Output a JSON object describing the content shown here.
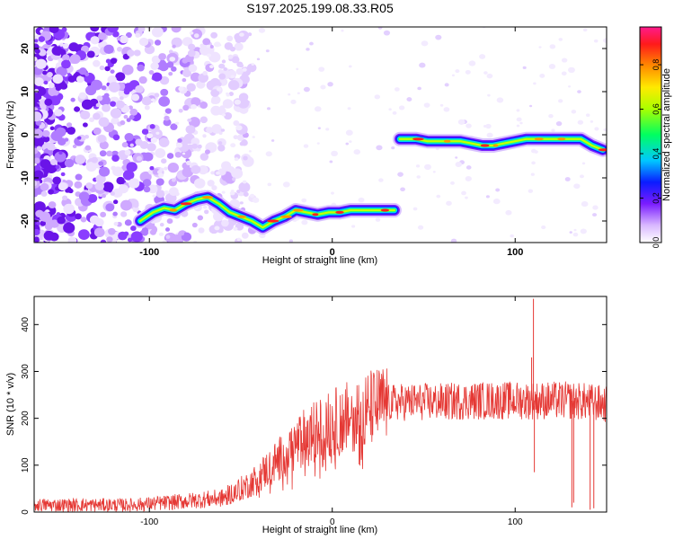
{
  "title": "S197.2025.199.08.33.R05",
  "chart_data": [
    {
      "type": "heatmap",
      "xlabel": "Height of straight line (km)",
      "ylabel": "Frequency (Hz)",
      "xlim": [
        -163,
        150
      ],
      "ylim": [
        -25,
        25
      ],
      "x_ticks": [
        "-100",
        "0",
        "100"
      ],
      "x_tick_values": [
        -100,
        0,
        100
      ],
      "y_ticks": [
        "-20",
        "-10",
        "0",
        "10",
        "20"
      ],
      "y_tick_values": [
        -20,
        -10,
        0,
        10,
        20
      ],
      "colorbar": {
        "label": "Normalized spectral amplitude",
        "range": [
          0,
          0.97
        ],
        "ticks": [
          "0.0",
          "0.2",
          "0.4",
          "0.6",
          "0.8"
        ],
        "tick_values": [
          0,
          0.2,
          0.4,
          0.6,
          0.8
        ]
      },
      "ridge": {
        "x": [
          -105,
          -98,
          -92,
          -86,
          -80,
          -74,
          -68,
          -62,
          -56,
          -50,
          -44,
          -38,
          -32,
          -26,
          -20,
          -14,
          -8,
          -2,
          4,
          10,
          16,
          22,
          28,
          34,
          37,
          40,
          46,
          52,
          58,
          64,
          70,
          76,
          82,
          88,
          94,
          100,
          106,
          112,
          118,
          124,
          130,
          136,
          142,
          148
        ],
        "y": [
          -20,
          -18,
          -17,
          -17.5,
          -16,
          -15,
          -14.5,
          -16,
          -18,
          -19,
          -20,
          -21.5,
          -20,
          -19,
          -17.5,
          -18,
          -18.5,
          -18,
          -18,
          -17.5,
          -17.5,
          -17.5,
          -17.5,
          -17.5,
          -1,
          -1,
          -1,
          -1.5,
          -1.5,
          -1.5,
          -1.5,
          -2,
          -2.5,
          -2.5,
          -2,
          -1.5,
          -1,
          -1,
          -1,
          -1,
          -1,
          -1,
          -2.5,
          -3.5
        ]
      }
    },
    {
      "type": "line",
      "xlabel": "Height of straight line (km)",
      "ylabel": "SNR (10 * v/v)",
      "xlim": [
        -163,
        150
      ],
      "ylim": [
        0,
        460
      ],
      "x_ticks": [
        "-100",
        "0",
        "100"
      ],
      "x_tick_values": [
        -100,
        0,
        100
      ],
      "y_ticks": [
        "0",
        "100",
        "200",
        "300",
        "400"
      ],
      "y_tick_values": [
        0,
        100,
        200,
        300,
        400
      ],
      "series": [
        {
          "color": "#e53935",
          "trend_x": [
            -163,
            -110,
            -90,
            -60,
            -45,
            -30,
            -15,
            0,
            10,
            20,
            30,
            40,
            60,
            80,
            100,
            130,
            140,
            150
          ],
          "trend_y": [
            15,
            15,
            20,
            30,
            60,
            110,
            160,
            190,
            205,
            220,
            232,
            235,
            235,
            238,
            238,
            238,
            235,
            230
          ],
          "spikes": [
            {
              "x": 110,
              "y": 455
            },
            {
              "x": 109,
              "y": 330
            },
            {
              "x": 110.5,
              "y": 85
            },
            {
              "x": 131,
              "y": 10
            },
            {
              "x": 132,
              "y": 20
            },
            {
              "x": 141,
              "y": 5
            },
            {
              "x": 143,
              "y": 8
            }
          ]
        }
      ]
    }
  ]
}
